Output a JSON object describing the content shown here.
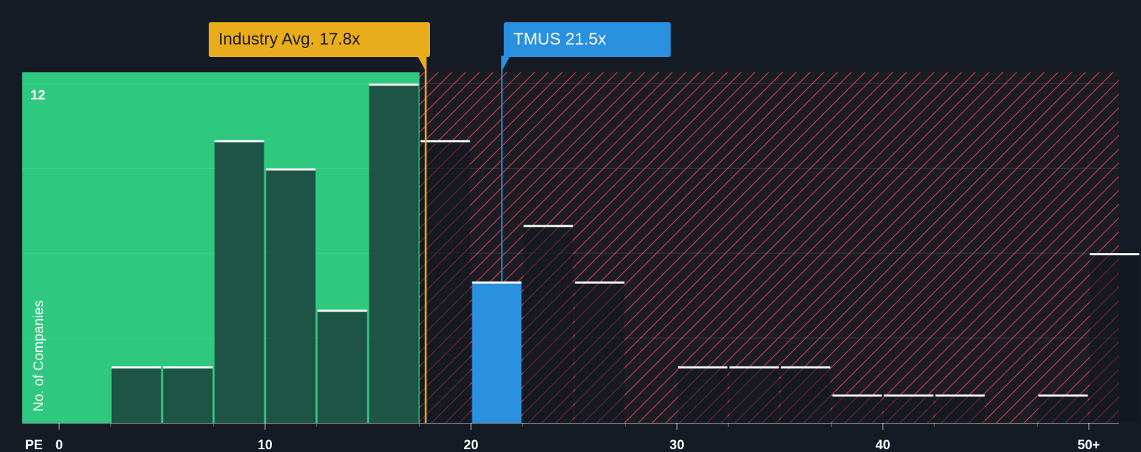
{
  "chart_data": {
    "type": "bar",
    "xlabel": "PE",
    "ylabel": "No. of Companies",
    "xlim": [
      -2.9,
      50.5
    ],
    "ylim": [
      0,
      12.4
    ],
    "y_top_tick": "12",
    "x_ticks": [
      {
        "value": 0,
        "label": "0"
      },
      {
        "value": 10,
        "label": "10"
      },
      {
        "value": 20,
        "label": "20"
      },
      {
        "value": 30,
        "label": "30"
      },
      {
        "value": 40,
        "label": "40"
      },
      {
        "value": 50,
        "label": "50+"
      }
    ],
    "bins": [
      {
        "x0": 2.5,
        "x1": 5.0,
        "count": 2
      },
      {
        "x0": 5.0,
        "x1": 7.5,
        "count": 2
      },
      {
        "x0": 7.5,
        "x1": 10.0,
        "count": 10
      },
      {
        "x0": 10.0,
        "x1": 12.5,
        "count": 9
      },
      {
        "x0": 12.5,
        "x1": 15.0,
        "count": 4
      },
      {
        "x0": 15.0,
        "x1": 17.5,
        "count": 12
      },
      {
        "x0": 17.5,
        "x1": 20.0,
        "count": 10
      },
      {
        "x0": 20.0,
        "x1": 22.5,
        "count": 5,
        "highlight": true
      },
      {
        "x0": 22.5,
        "x1": 25.0,
        "count": 7
      },
      {
        "x0": 25.0,
        "x1": 27.5,
        "count": 5
      },
      {
        "x0": 30.0,
        "x1": 32.5,
        "count": 2
      },
      {
        "x0": 32.5,
        "x1": 35.0,
        "count": 2
      },
      {
        "x0": 35.0,
        "x1": 37.5,
        "count": 2
      },
      {
        "x0": 37.5,
        "x1": 40.0,
        "count": 1
      },
      {
        "x0": 40.0,
        "x1": 42.5,
        "count": 1
      },
      {
        "x0": 42.5,
        "x1": 45.0,
        "count": 1
      },
      {
        "x0": 47.5,
        "x1": 50.0,
        "count": 1
      },
      {
        "x0": 50.0,
        "x1": 52.5,
        "count": 6
      }
    ],
    "fair_zone_end": 17.5,
    "industry_avg": {
      "value": 17.8,
      "label": "Industry Avg. 17.8x"
    },
    "company": {
      "value": 21.5,
      "label": "TMUS 21.5x"
    }
  },
  "colors": {
    "background": "#151b24",
    "fair_zone": "#2ec97e",
    "bar_fill": "#1d4a40",
    "overvalued_stripe": "#b7343b",
    "highlight_bar": "#2a90e0",
    "industry_marker": "#e9ad1c",
    "company_marker": "#2a90e0",
    "bar_cap": "#ffffff",
    "axis_text": "#ffffff"
  }
}
